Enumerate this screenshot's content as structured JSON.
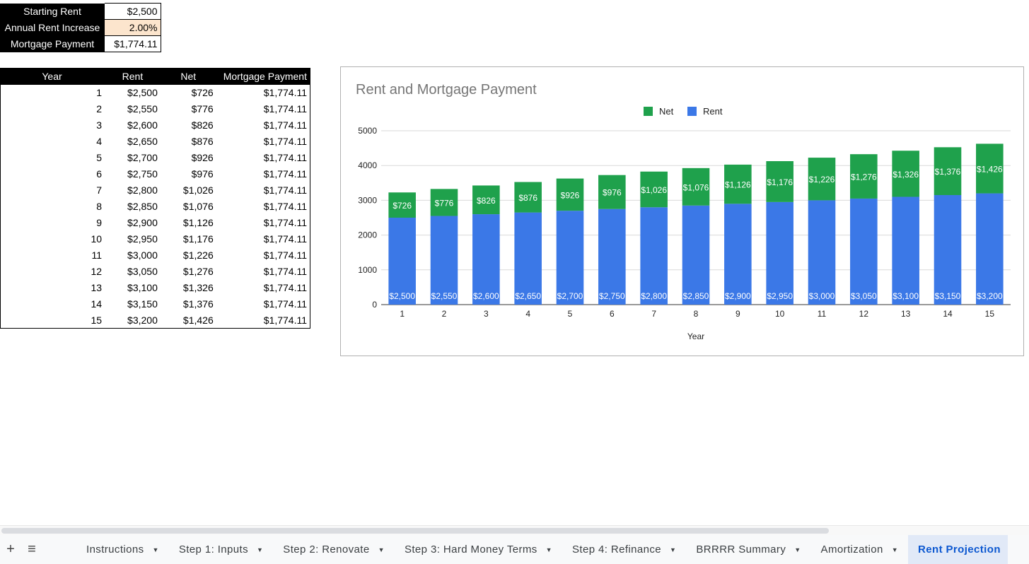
{
  "inputs": {
    "starting_rent_label": "Starting Rent",
    "starting_rent_value": "$2,500",
    "annual_increase_label": "Annual Rent Increase",
    "annual_increase_value": "2.00%",
    "mortgage_label": "Mortgage Payment",
    "mortgage_value": "$1,774.11"
  },
  "table": {
    "headers": [
      "Year",
      "Rent",
      "Net",
      "Mortgage Payment"
    ],
    "rows": [
      [
        "1",
        "$2,500",
        "$726",
        "$1,774.11"
      ],
      [
        "2",
        "$2,550",
        "$776",
        "$1,774.11"
      ],
      [
        "3",
        "$2,600",
        "$826",
        "$1,774.11"
      ],
      [
        "4",
        "$2,650",
        "$876",
        "$1,774.11"
      ],
      [
        "5",
        "$2,700",
        "$926",
        "$1,774.11"
      ],
      [
        "6",
        "$2,750",
        "$976",
        "$1,774.11"
      ],
      [
        "7",
        "$2,800",
        "$1,026",
        "$1,774.11"
      ],
      [
        "8",
        "$2,850",
        "$1,076",
        "$1,774.11"
      ],
      [
        "9",
        "$2,900",
        "$1,126",
        "$1,774.11"
      ],
      [
        "10",
        "$2,950",
        "$1,176",
        "$1,774.11"
      ],
      [
        "11",
        "$3,000",
        "$1,226",
        "$1,774.11"
      ],
      [
        "12",
        "$3,050",
        "$1,276",
        "$1,774.11"
      ],
      [
        "13",
        "$3,100",
        "$1,326",
        "$1,774.11"
      ],
      [
        "14",
        "$3,150",
        "$1,376",
        "$1,774.11"
      ],
      [
        "15",
        "$3,200",
        "$1,426",
        "$1,774.11"
      ]
    ]
  },
  "chart_data": {
    "type": "bar",
    "stacked": true,
    "title": "Rent and Mortgage Payment",
    "xlabel": "Year",
    "ylabel": "",
    "categories": [
      "1",
      "2",
      "3",
      "4",
      "5",
      "6",
      "7",
      "8",
      "9",
      "10",
      "11",
      "12",
      "13",
      "14",
      "15"
    ],
    "ylim": [
      0,
      5000
    ],
    "yticks": [
      "0",
      "1000",
      "2000",
      "3000",
      "4000",
      "5000"
    ],
    "grid": true,
    "legend_position": "top-right",
    "series": [
      {
        "name": "Rent",
        "color": "#3b78e7",
        "values": [
          2500,
          2550,
          2600,
          2650,
          2700,
          2750,
          2800,
          2850,
          2900,
          2950,
          3000,
          3050,
          3100,
          3150,
          3200
        ],
        "labels": [
          "$2,500",
          "$2,550",
          "$2,600",
          "$2,650",
          "$2,700",
          "$2,750",
          "$2,800",
          "$2,850",
          "$2,900",
          "$2,950",
          "$3,000",
          "$3,050",
          "$3,100",
          "$3,150",
          "$3,200"
        ]
      },
      {
        "name": "Net",
        "color": "#1fa14c",
        "values": [
          726,
          776,
          826,
          876,
          926,
          976,
          1026,
          1076,
          1126,
          1176,
          1226,
          1276,
          1326,
          1376,
          1426
        ],
        "labels": [
          "$726",
          "$776",
          "$826",
          "$876",
          "$926",
          "$976",
          "$1,026",
          "$1,076",
          "$1,126",
          "$1,176",
          "$1,226",
          "$1,276",
          "$1,326",
          "$1,376",
          "$1,426"
        ]
      }
    ],
    "legend_order": [
      "Net",
      "Rent"
    ]
  },
  "tabs": {
    "add_icon": "plus-icon",
    "menu_icon": "menu-icon",
    "items": [
      {
        "label": "Instructions"
      },
      {
        "label": "Step 1: Inputs"
      },
      {
        "label": "Step 2: Renovate"
      },
      {
        "label": "Step 3: Hard Money Terms"
      },
      {
        "label": "Step 4: Refinance"
      },
      {
        "label": "BRRRR Summary"
      },
      {
        "label": "Amortization"
      },
      {
        "label": "Rent Projection",
        "active": true
      }
    ]
  }
}
